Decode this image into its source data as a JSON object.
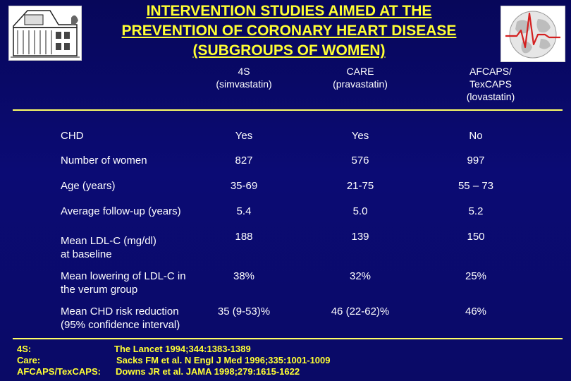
{
  "title": {
    "line1": "INTERVENTION STUDIES AIMED AT THE",
    "line2": "PREVENTION OF CORONARY HEART DISEASE",
    "line3": "(SUBGROUPS OF WOMEN)"
  },
  "logos": {
    "left_icon": "building-sketch-icon",
    "right_icon": "globe-ecg-icon"
  },
  "columns": [
    {
      "line1": "4S",
      "line2": "(simvastatin)"
    },
    {
      "line1": "CARE",
      "line2": "(pravastatin)"
    },
    {
      "line1": "AFCAPS/",
      "line2": "TexCAPS",
      "line3": "(lovastatin)"
    }
  ],
  "rows": [
    {
      "label": "CHD",
      "values": [
        "Yes",
        "Yes",
        "No"
      ]
    },
    {
      "label": "Number of women",
      "values": [
        "827",
        "576",
        "997"
      ]
    },
    {
      "label": "Age (years)",
      "values": [
        "35-69",
        "21-75",
        "55 – 73"
      ]
    },
    {
      "label": "Average follow-up (years)",
      "values": [
        "5.4",
        "5.0",
        "5.2"
      ]
    },
    {
      "label": "Mean LDL-C (mg/dl)",
      "label2": "at baseline",
      "values": [
        "188",
        "139",
        "150"
      ]
    },
    {
      "label": "Mean lowering of LDL-C in",
      "label2": "the verum group",
      "values": [
        "38%",
        "32%",
        "25%"
      ]
    },
    {
      "label": "Mean CHD risk reduction",
      "label2": "(95% confidence interval)",
      "values": [
        "35 (9-53)%",
        "46 (22-62)%",
        "46%"
      ]
    }
  ],
  "references": [
    {
      "study": "4S:",
      "citation": "The Lancet 1994;344:1383-1389"
    },
    {
      "study": "Care:",
      "citation": "Sacks FM et al. N Engl J Med 1996;335:1001-1009"
    },
    {
      "study": "AFCAPS/TexCAPS:",
      "citation": "Downs JR et al. JAMA 1998;279:1615-1622"
    }
  ],
  "colors": {
    "background": "#0b0b74",
    "title": "#ffff33",
    "text": "#ffffff",
    "rule": "#ffff66"
  }
}
